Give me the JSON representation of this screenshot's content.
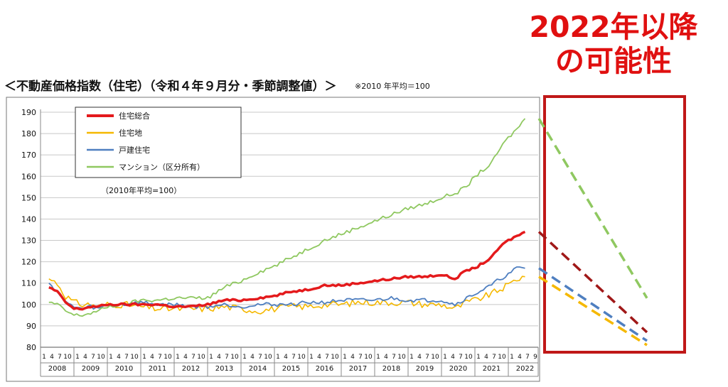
{
  "headline": {
    "line1": "2022年以降",
    "line2": "の可能性"
  },
  "title": "＜不動産価格指数（住宅）（令和４年９月分・季節調整値）＞",
  "note": "※2010 年平均＝100",
  "colors": {
    "total": "#e41a1c",
    "land": "#f5b800",
    "detached": "#4f7fc0",
    "condo": "#8fc860",
    "forecast_total": "#a01818",
    "forecast_box": "#c01818"
  },
  "chart_data": {
    "type": "line",
    "ylim": [
      80,
      190
    ],
    "yticks": [
      80,
      90,
      100,
      110,
      120,
      130,
      140,
      150,
      160,
      170,
      180,
      190
    ],
    "years": [
      "2008",
      "2009",
      "2010",
      "2011",
      "2012",
      "2013",
      "2014",
      "2015",
      "2016",
      "2017",
      "2018",
      "2019",
      "2020",
      "2021",
      "2022"
    ],
    "month_ticks": [
      "1",
      "4",
      "7",
      "10"
    ],
    "month_ticks_last": [
      "1",
      "4",
      "7",
      "9"
    ],
    "legend_note": "（2010年平均=100）",
    "grid": "horizontal",
    "legend_position": "top-left",
    "series": [
      {
        "name": "住宅総合",
        "key": "total",
        "points": [
          [
            2008.25,
            108
          ],
          [
            2008.5,
            106
          ],
          [
            2008.75,
            101
          ],
          [
            2009.0,
            98
          ],
          [
            2009.25,
            98
          ],
          [
            2009.5,
            99
          ],
          [
            2009.75,
            99
          ],
          [
            2010.0,
            100
          ],
          [
            2010.5,
            100
          ],
          [
            2011.0,
            100
          ],
          [
            2011.5,
            100
          ],
          [
            2012.0,
            99
          ],
          [
            2012.5,
            99
          ],
          [
            2013.0,
            100
          ],
          [
            2013.5,
            102
          ],
          [
            2014.0,
            102
          ],
          [
            2014.5,
            103
          ],
          [
            2015.0,
            104
          ],
          [
            2015.5,
            106
          ],
          [
            2016.0,
            107
          ],
          [
            2016.5,
            109
          ],
          [
            2017.0,
            109
          ],
          [
            2017.5,
            110
          ],
          [
            2018.0,
            111
          ],
          [
            2018.5,
            112
          ],
          [
            2019.0,
            113
          ],
          [
            2019.5,
            113
          ],
          [
            2020.0,
            114
          ],
          [
            2020.4,
            112
          ],
          [
            2020.75,
            116
          ],
          [
            2021.0,
            117
          ],
          [
            2021.5,
            122
          ],
          [
            2021.75,
            127
          ],
          [
            2022.0,
            130
          ],
          [
            2022.25,
            132
          ],
          [
            2022.5,
            134
          ]
        ]
      },
      {
        "name": "住宅地",
        "key": "land",
        "points": [
          [
            2008.25,
            112
          ],
          [
            2008.5,
            110
          ],
          [
            2008.75,
            104
          ],
          [
            2009.0,
            101
          ],
          [
            2009.25,
            100
          ],
          [
            2009.5,
            100
          ],
          [
            2009.75,
            99
          ],
          [
            2010.0,
            100
          ],
          [
            2010.5,
            100
          ],
          [
            2011.0,
            99
          ],
          [
            2011.5,
            98
          ],
          [
            2012.0,
            98
          ],
          [
            2012.5,
            98
          ],
          [
            2013.0,
            98
          ],
          [
            2013.5,
            99
          ],
          [
            2014.0,
            98
          ],
          [
            2014.5,
            97
          ],
          [
            2015.0,
            98
          ],
          [
            2015.5,
            99
          ],
          [
            2016.0,
            99
          ],
          [
            2016.5,
            100
          ],
          [
            2017.0,
            100
          ],
          [
            2017.5,
            101
          ],
          [
            2018.0,
            101
          ],
          [
            2018.5,
            101
          ],
          [
            2019.0,
            101
          ],
          [
            2019.5,
            100
          ],
          [
            2020.0,
            100
          ],
          [
            2020.4,
            98
          ],
          [
            2020.75,
            101
          ],
          [
            2021.0,
            102
          ],
          [
            2021.5,
            105
          ],
          [
            2021.75,
            107
          ],
          [
            2022.0,
            109
          ],
          [
            2022.25,
            112
          ],
          [
            2022.5,
            113
          ]
        ]
      },
      {
        "name": "戸建住宅",
        "key": "detached",
        "points": [
          [
            2008.25,
            110
          ],
          [
            2008.5,
            106
          ],
          [
            2008.75,
            101
          ],
          [
            2009.0,
            99
          ],
          [
            2009.25,
            98
          ],
          [
            2009.5,
            99
          ],
          [
            2009.75,
            98
          ],
          [
            2010.0,
            100
          ],
          [
            2010.5,
            100
          ],
          [
            2011.0,
            101
          ],
          [
            2011.5,
            100
          ],
          [
            2012.0,
            100
          ],
          [
            2012.5,
            99
          ],
          [
            2013.0,
            99
          ],
          [
            2013.5,
            100
          ],
          [
            2014.0,
            99
          ],
          [
            2014.5,
            100
          ],
          [
            2015.0,
            100
          ],
          [
            2015.5,
            100
          ],
          [
            2016.0,
            101
          ],
          [
            2016.5,
            101
          ],
          [
            2017.0,
            102
          ],
          [
            2017.5,
            102
          ],
          [
            2018.0,
            102
          ],
          [
            2018.5,
            103
          ],
          [
            2019.0,
            102
          ],
          [
            2019.5,
            102
          ],
          [
            2020.0,
            102
          ],
          [
            2020.4,
            100
          ],
          [
            2020.75,
            103
          ],
          [
            2021.0,
            105
          ],
          [
            2021.5,
            109
          ],
          [
            2021.75,
            112
          ],
          [
            2022.0,
            114
          ],
          [
            2022.25,
            117
          ],
          [
            2022.5,
            117
          ]
        ]
      },
      {
        "name": "マンション（区分所有）",
        "key": "condo",
        "points": [
          [
            2008.25,
            101
          ],
          [
            2008.5,
            100
          ],
          [
            2008.75,
            97
          ],
          [
            2009.0,
            95
          ],
          [
            2009.25,
            95
          ],
          [
            2009.5,
            96
          ],
          [
            2009.75,
            97
          ],
          [
            2010.0,
            99
          ],
          [
            2010.5,
            100
          ],
          [
            2011.0,
            102
          ],
          [
            2011.5,
            102
          ],
          [
            2012.0,
            103
          ],
          [
            2012.5,
            103
          ],
          [
            2013.0,
            103
          ],
          [
            2013.5,
            108
          ],
          [
            2014.0,
            111
          ],
          [
            2014.5,
            115
          ],
          [
            2015.0,
            118
          ],
          [
            2015.5,
            122
          ],
          [
            2016.0,
            126
          ],
          [
            2016.5,
            130
          ],
          [
            2017.0,
            133
          ],
          [
            2017.5,
            136
          ],
          [
            2018.0,
            139
          ],
          [
            2018.5,
            142
          ],
          [
            2019.0,
            145
          ],
          [
            2019.5,
            147
          ],
          [
            2020.0,
            150
          ],
          [
            2020.4,
            152
          ],
          [
            2020.75,
            155
          ],
          [
            2021.0,
            160
          ],
          [
            2021.5,
            166
          ],
          [
            2021.75,
            173
          ],
          [
            2022.0,
            178
          ],
          [
            2022.25,
            182
          ],
          [
            2022.5,
            187
          ]
        ]
      }
    ],
    "forecast": [
      {
        "key": "condo",
        "from": 187,
        "to": 103
      },
      {
        "key": "total",
        "from": 134,
        "to": 87
      },
      {
        "key": "detached",
        "from": 117,
        "to": 83
      },
      {
        "key": "land",
        "from": 113,
        "to": 81
      }
    ]
  }
}
